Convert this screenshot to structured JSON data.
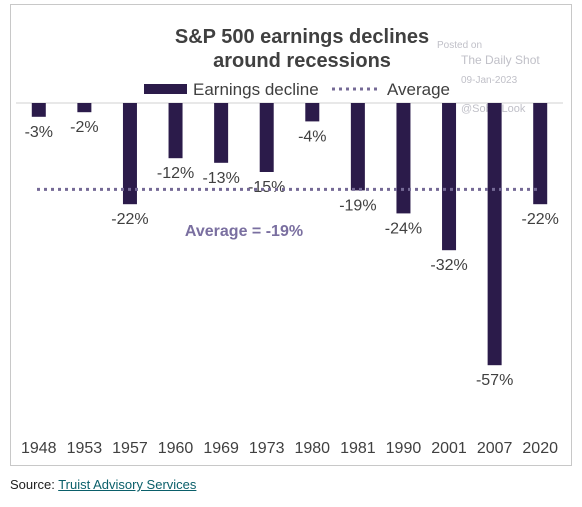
{
  "chart_data": {
    "type": "bar",
    "title_lines": [
      "S&P 500 earnings declines",
      "around recessions"
    ],
    "categories": [
      "1948",
      "1953",
      "1957",
      "1960",
      "1969",
      "1973",
      "1980",
      "1981",
      "1990",
      "2001",
      "2007",
      "2020"
    ],
    "series": [
      {
        "name": "Earnings decline",
        "values": [
          -3,
          -2,
          -22,
          -12,
          -13,
          -15,
          -4,
          -19,
          -24,
          -32,
          -57,
          -22
        ]
      }
    ],
    "data_labels": [
      "-3%",
      "-2%",
      "-22%",
      "-12%",
      "-13%",
      "-15%",
      "-4%",
      "-19%",
      "-24%",
      "-32%",
      "-57%",
      "-22%"
    ],
    "average": {
      "name": "Average",
      "value": -19,
      "label": "Average = -19%"
    },
    "ylim": [
      -70,
      0
    ],
    "colors": {
      "bar": "#2b1b4a",
      "average": "#756a96",
      "avg_label": "#7a6fa0"
    },
    "legend_position": "top"
  },
  "watermark": {
    "line1": "Posted on",
    "line2": "The Daily Shot",
    "line3": "09-Jan-2023",
    "line4": "@SoberLook"
  },
  "source": {
    "prefix": "Source: ",
    "link": "Truist Advisory Services"
  }
}
